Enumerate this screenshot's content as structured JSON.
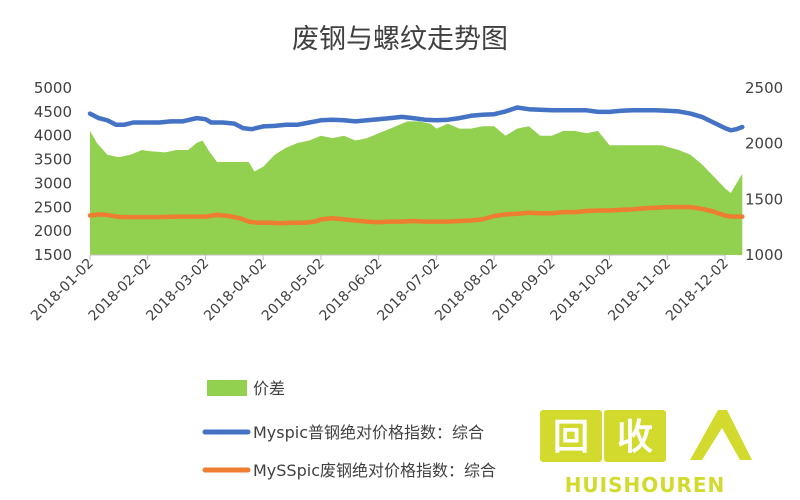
{
  "chart_data": {
    "type": "line",
    "title": "废钢与螺纹走势图",
    "x": [
      "2018-01-02",
      "2018-02-02",
      "2018-03-02",
      "2018-04-02",
      "2018-05-02",
      "2018-06-02",
      "2018-07-02",
      "2018-08-02",
      "2018-09-02",
      "2018-10-02",
      "2018-11-02",
      "2018-12-02"
    ],
    "x_tick_labels": [
      "2018-01-02",
      "2018-02-02",
      "2018-03-02",
      "2018-04-02",
      "2018-05-02",
      "2018-06-02",
      "2018-07-02",
      "2018-08-02",
      "2018-09-02",
      "2018-10-02",
      "2018-11-02",
      "2018-12-02"
    ],
    "y_left": {
      "range": [
        1500,
        5000
      ],
      "ticks": [
        "1500",
        "2000",
        "2500",
        "3000",
        "3500",
        "4000",
        "4500",
        "5000"
      ]
    },
    "y_right": {
      "range": [
        1000,
        2500
      ],
      "ticks": [
        "1000",
        "1500",
        "2000",
        "2500"
      ]
    },
    "grid": false,
    "legend_position": "bottom",
    "series": [
      {
        "name": "价差",
        "kind": "area",
        "axis": "left",
        "color": "#92D050",
        "points": [
          [
            0,
            4100
          ],
          [
            0.12,
            3850
          ],
          [
            0.3,
            3600
          ],
          [
            0.5,
            3550
          ],
          [
            0.7,
            3600
          ],
          [
            0.9,
            3700
          ],
          [
            1.0,
            3680
          ],
          [
            1.3,
            3650
          ],
          [
            1.5,
            3700
          ],
          [
            1.7,
            3700
          ],
          [
            1.85,
            3850
          ],
          [
            1.95,
            3900
          ],
          [
            2.05,
            3700
          ],
          [
            2.2,
            3450
          ],
          [
            2.4,
            3450
          ],
          [
            2.6,
            3450
          ],
          [
            2.75,
            3450
          ],
          [
            2.85,
            3250
          ],
          [
            3.0,
            3350
          ],
          [
            3.2,
            3600
          ],
          [
            3.4,
            3750
          ],
          [
            3.6,
            3850
          ],
          [
            3.8,
            3900
          ],
          [
            4.0,
            4000
          ],
          [
            4.2,
            3950
          ],
          [
            4.4,
            4000
          ],
          [
            4.6,
            3900
          ],
          [
            4.8,
            3950
          ],
          [
            5.0,
            4050
          ],
          [
            5.2,
            4150
          ],
          [
            5.4,
            4250
          ],
          [
            5.5,
            4300
          ],
          [
            5.7,
            4300
          ],
          [
            5.9,
            4250
          ],
          [
            6.0,
            4150
          ],
          [
            6.2,
            4250
          ],
          [
            6.4,
            4150
          ],
          [
            6.6,
            4150
          ],
          [
            6.8,
            4200
          ],
          [
            7.0,
            4200
          ],
          [
            7.2,
            4000
          ],
          [
            7.4,
            4150
          ],
          [
            7.6,
            4200
          ],
          [
            7.8,
            4000
          ],
          [
            8.0,
            4000
          ],
          [
            8.2,
            4100
          ],
          [
            8.4,
            4100
          ],
          [
            8.6,
            4050
          ],
          [
            8.8,
            4100
          ],
          [
            9.0,
            3800
          ],
          [
            9.3,
            3800
          ],
          [
            9.6,
            3800
          ],
          [
            9.9,
            3800
          ],
          [
            10.2,
            3700
          ],
          [
            10.4,
            3600
          ],
          [
            10.6,
            3400
          ],
          [
            10.8,
            3150
          ],
          [
            11.0,
            2900
          ],
          [
            11.1,
            2800
          ],
          [
            11.2,
            3000
          ],
          [
            11.3,
            3200
          ]
        ]
      },
      {
        "name": "Myspic普钢绝对价格指数：综合",
        "kind": "line",
        "axis": "right",
        "color": "#4472C4",
        "points": [
          [
            0,
            2270
          ],
          [
            0.15,
            2230
          ],
          [
            0.3,
            2210
          ],
          [
            0.45,
            2170
          ],
          [
            0.6,
            2170
          ],
          [
            0.75,
            2190
          ],
          [
            0.9,
            2190
          ],
          [
            1.2,
            2190
          ],
          [
            1.4,
            2200
          ],
          [
            1.6,
            2200
          ],
          [
            1.85,
            2230
          ],
          [
            2.0,
            2220
          ],
          [
            2.1,
            2190
          ],
          [
            2.3,
            2190
          ],
          [
            2.5,
            2180
          ],
          [
            2.65,
            2140
          ],
          [
            2.8,
            2130
          ],
          [
            3.0,
            2155
          ],
          [
            3.2,
            2160
          ],
          [
            3.4,
            2170
          ],
          [
            3.6,
            2170
          ],
          [
            3.8,
            2190
          ],
          [
            4.0,
            2210
          ],
          [
            4.2,
            2215
          ],
          [
            4.4,
            2210
          ],
          [
            4.6,
            2200
          ],
          [
            4.8,
            2210
          ],
          [
            5.0,
            2220
          ],
          [
            5.2,
            2230
          ],
          [
            5.4,
            2240
          ],
          [
            5.6,
            2230
          ],
          [
            5.8,
            2215
          ],
          [
            6.0,
            2210
          ],
          [
            6.2,
            2215
          ],
          [
            6.4,
            2230
          ],
          [
            6.6,
            2250
          ],
          [
            6.8,
            2260
          ],
          [
            7.0,
            2265
          ],
          [
            7.2,
            2290
          ],
          [
            7.4,
            2325
          ],
          [
            7.6,
            2310
          ],
          [
            7.8,
            2305
          ],
          [
            8.0,
            2300
          ],
          [
            8.2,
            2300
          ],
          [
            8.4,
            2300
          ],
          [
            8.6,
            2300
          ],
          [
            8.8,
            2285
          ],
          [
            9.0,
            2285
          ],
          [
            9.2,
            2295
          ],
          [
            9.4,
            2300
          ],
          [
            9.6,
            2300
          ],
          [
            9.8,
            2300
          ],
          [
            10.0,
            2295
          ],
          [
            10.2,
            2290
          ],
          [
            10.4,
            2270
          ],
          [
            10.6,
            2240
          ],
          [
            10.8,
            2190
          ],
          [
            11.0,
            2140
          ],
          [
            11.1,
            2120
          ],
          [
            11.2,
            2130
          ],
          [
            11.3,
            2150
          ]
        ]
      },
      {
        "name": "MySSpic废钢绝对价格指数：综合",
        "kind": "line",
        "axis": "right",
        "color": "#ED7D31",
        "points": [
          [
            0,
            1355
          ],
          [
            0.15,
            1365
          ],
          [
            0.3,
            1360
          ],
          [
            0.45,
            1345
          ],
          [
            0.6,
            1340
          ],
          [
            0.9,
            1340
          ],
          [
            1.2,
            1340
          ],
          [
            1.5,
            1345
          ],
          [
            1.8,
            1345
          ],
          [
            2.0,
            1345
          ],
          [
            2.2,
            1360
          ],
          [
            2.4,
            1350
          ],
          [
            2.6,
            1330
          ],
          [
            2.75,
            1300
          ],
          [
            2.9,
            1290
          ],
          [
            3.1,
            1290
          ],
          [
            3.3,
            1285
          ],
          [
            3.5,
            1290
          ],
          [
            3.7,
            1290
          ],
          [
            3.9,
            1300
          ],
          [
            4.0,
            1320
          ],
          [
            4.2,
            1330
          ],
          [
            4.4,
            1320
          ],
          [
            4.6,
            1310
          ],
          [
            4.8,
            1300
          ],
          [
            5.0,
            1295
          ],
          [
            5.2,
            1300
          ],
          [
            5.4,
            1300
          ],
          [
            5.6,
            1305
          ],
          [
            5.8,
            1300
          ],
          [
            6.0,
            1300
          ],
          [
            6.2,
            1300
          ],
          [
            6.4,
            1305
          ],
          [
            6.6,
            1310
          ],
          [
            6.8,
            1320
          ],
          [
            7.0,
            1350
          ],
          [
            7.2,
            1365
          ],
          [
            7.4,
            1370
          ],
          [
            7.6,
            1380
          ],
          [
            7.8,
            1375
          ],
          [
            8.0,
            1375
          ],
          [
            8.2,
            1385
          ],
          [
            8.4,
            1385
          ],
          [
            8.6,
            1395
          ],
          [
            8.8,
            1400
          ],
          [
            9.0,
            1400
          ],
          [
            9.2,
            1405
          ],
          [
            9.4,
            1410
          ],
          [
            9.6,
            1420
          ],
          [
            9.8,
            1425
          ],
          [
            10.0,
            1430
          ],
          [
            10.2,
            1430
          ],
          [
            10.4,
            1430
          ],
          [
            10.6,
            1415
          ],
          [
            10.8,
            1390
          ],
          [
            11.0,
            1355
          ],
          [
            11.1,
            1345
          ],
          [
            11.2,
            1345
          ],
          [
            11.3,
            1345
          ]
        ]
      }
    ]
  },
  "legend": [
    {
      "label": "价差",
      "color": "#92D050",
      "marker": "box"
    },
    {
      "label": "Myspic普钢绝对价格指数：综合",
      "color": "#4472C4",
      "marker": "line"
    },
    {
      "label": "MySSpic废钢绝对价格指数：综合",
      "color": "#ED7D31",
      "marker": "line"
    }
  ],
  "watermark": {
    "text": "HUISHOUREN",
    "logo_chars": "回收",
    "color": "#C9D400"
  }
}
